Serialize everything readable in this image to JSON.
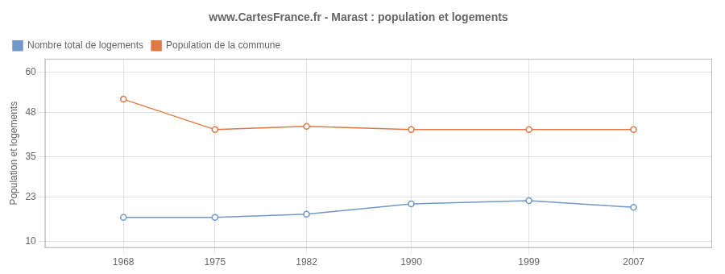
{
  "chart_data": {
    "type": "line",
    "title": "www.CartesFrance.fr - Marast : population et logements",
    "y_label": "Population et logements",
    "x": [
      1968,
      1975,
      1982,
      1990,
      1999,
      2007
    ],
    "series": [
      {
        "name": "Nombre total de logements",
        "color": "#7098c8",
        "values": [
          17,
          17,
          18,
          21,
          22,
          20
        ]
      },
      {
        "name": "Population de la commune",
        "color": "#e07845",
        "values": [
          52,
          43,
          44,
          43,
          43,
          43
        ]
      }
    ],
    "xlim": [
      1962,
      2013
    ],
    "xticks": [
      1968,
      1975,
      1982,
      1990,
      1999,
      2007
    ],
    "ylim": [
      8,
      64
    ],
    "yticks": [
      10,
      23,
      35,
      48,
      60
    ],
    "grid": true,
    "legend": "upper left",
    "marker": "circle"
  }
}
